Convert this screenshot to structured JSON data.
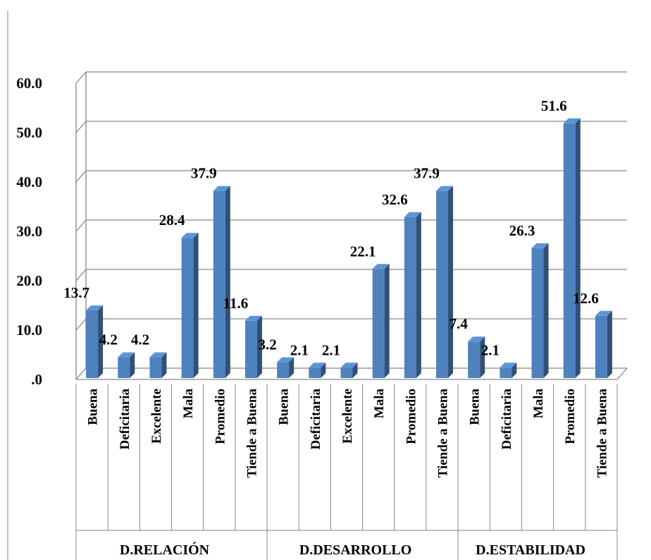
{
  "chart_data": {
    "type": "bar",
    "title": "",
    "xlabel": "",
    "ylabel": "",
    "ylim": [
      0,
      60
    ],
    "yticks": [
      ".0",
      "10.0",
      "20.0",
      "30.0",
      "40.0",
      "50.0",
      "60.0"
    ],
    "grid": true,
    "legend": "none",
    "bar_color": "#4f81bd",
    "groups": [
      {
        "name": "D.RELACIÓN",
        "categories": [
          "Buena",
          "Deficitaria",
          "Excelente",
          "Mala",
          "Promedio",
          "Tiende a Buena"
        ],
        "values": [
          13.7,
          4.2,
          4.2,
          28.4,
          37.9,
          11.6
        ],
        "labels": [
          "13.7",
          "4.2",
          "4.2",
          "28.4",
          "37.9",
          "11.6"
        ]
      },
      {
        "name": "D.DESARROLLO",
        "categories": [
          "Buena",
          "Deficitaria",
          "Excelente",
          "Mala",
          "Promedio",
          "Tiende a Buena"
        ],
        "values": [
          3.2,
          2.1,
          2.1,
          22.1,
          32.6,
          37.9
        ],
        "labels": [
          "3.2",
          "2.1",
          "2.1",
          "22.1",
          "32.6",
          "37.9"
        ]
      },
      {
        "name": "D.ESTABILIDAD",
        "categories": [
          "Buena",
          "Deficitaria",
          "Mala",
          "Promedio",
          "Tiende a Buena"
        ],
        "values": [
          7.4,
          2.1,
          26.3,
          51.6,
          12.6
        ],
        "labels": [
          "7.4",
          "2.1",
          "26.3",
          "51.6",
          "12.6"
        ]
      }
    ]
  }
}
